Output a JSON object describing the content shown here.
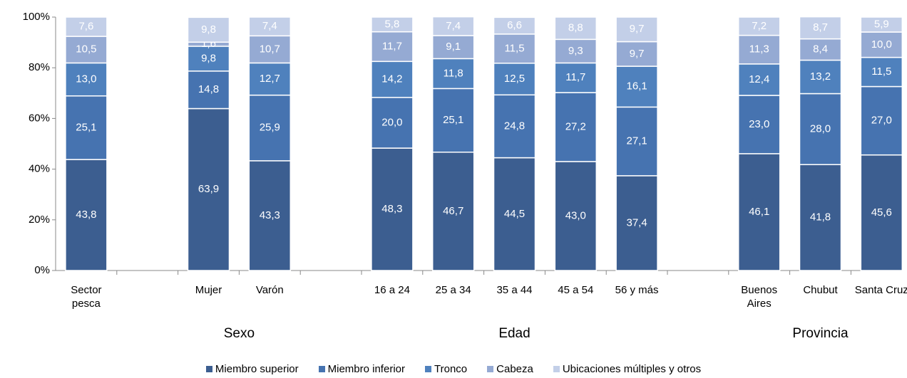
{
  "chart_data": {
    "type": "stacked_bar",
    "categories": [
      "Sector pesca",
      null,
      "Mujer",
      "Varón",
      null,
      "16 a 24",
      "25 a 34",
      "35 a 44",
      "45 a 54",
      "56 y más",
      null,
      "Buenos Aires",
      "Chubut",
      "Santa Cruz"
    ],
    "groups": [
      "Sexo",
      "Edad",
      "Provincia"
    ],
    "ylim": [
      0,
      100
    ],
    "yticks": [
      {
        "value": 0,
        "label": "0%"
      },
      {
        "value": 20,
        "label": "20%"
      },
      {
        "value": 40,
        "label": "40%"
      },
      {
        "value": 60,
        "label": "60%"
      },
      {
        "value": 80,
        "label": "80%"
      },
      {
        "value": 100,
        "label": "100%"
      }
    ],
    "legend": "bottom",
    "series": [
      {
        "name": "Miembro superior",
        "color": "#3c5e90",
        "values": [
          43.8,
          null,
          63.9,
          43.3,
          null,
          48.3,
          46.7,
          44.5,
          43.0,
          37.4,
          null,
          46.1,
          41.8,
          45.6
        ],
        "value_labels": [
          "43,8",
          null,
          "63,9",
          "43,3",
          null,
          "48,3",
          "46,7",
          "44,5",
          "43,0",
          "37,4",
          null,
          "46,1",
          "41,8",
          "45,6"
        ]
      },
      {
        "name": "Miembro inferior",
        "color": "#4673b0",
        "values": [
          25.1,
          null,
          14.8,
          25.9,
          null,
          20.0,
          25.1,
          24.8,
          27.2,
          27.1,
          null,
          23.0,
          28.0,
          27.0
        ],
        "value_labels": [
          "25,1",
          null,
          "14,8",
          "25,9",
          null,
          "20,0",
          "25,1",
          "24,8",
          "27,2",
          "27,1",
          null,
          "23,0",
          "28,0",
          "27,0"
        ]
      },
      {
        "name": "Tronco",
        "color": "#4f81bd",
        "values": [
          13.0,
          null,
          9.8,
          12.7,
          null,
          14.2,
          11.8,
          12.5,
          11.7,
          16.1,
          null,
          12.4,
          13.2,
          11.5
        ],
        "value_labels": [
          "13,0",
          null,
          "9,8",
          "12,7",
          null,
          "14,2",
          "11,8",
          "12,5",
          "11,7",
          "16,1",
          null,
          "12,4",
          "13,2",
          "11,5"
        ]
      },
      {
        "name": "Cabeza",
        "color": "#95aad3",
        "values": [
          10.5,
          null,
          1.6,
          10.7,
          null,
          11.7,
          9.1,
          11.5,
          9.3,
          9.7,
          null,
          11.3,
          8.4,
          10.0
        ],
        "value_labels": [
          "10,5",
          null,
          "1,6",
          "10,7",
          null,
          "11,7",
          "9,1",
          "11,5",
          "9,3",
          "9,7",
          null,
          "11,3",
          "8,4",
          "10,0"
        ]
      },
      {
        "name": "Ubicaciones múltiples y otros",
        "color": "#c3cfe8",
        "values": [
          7.6,
          null,
          9.8,
          7.4,
          null,
          5.8,
          7.4,
          6.6,
          8.8,
          9.7,
          null,
          7.2,
          8.7,
          5.9
        ],
        "value_labels": [
          "7,6",
          null,
          "9,8",
          "7,4",
          null,
          "5,8",
          "7,4",
          "6,6",
          "8,8",
          "9,7",
          null,
          "7,2",
          "8,7",
          "5,9"
        ]
      }
    ]
  }
}
